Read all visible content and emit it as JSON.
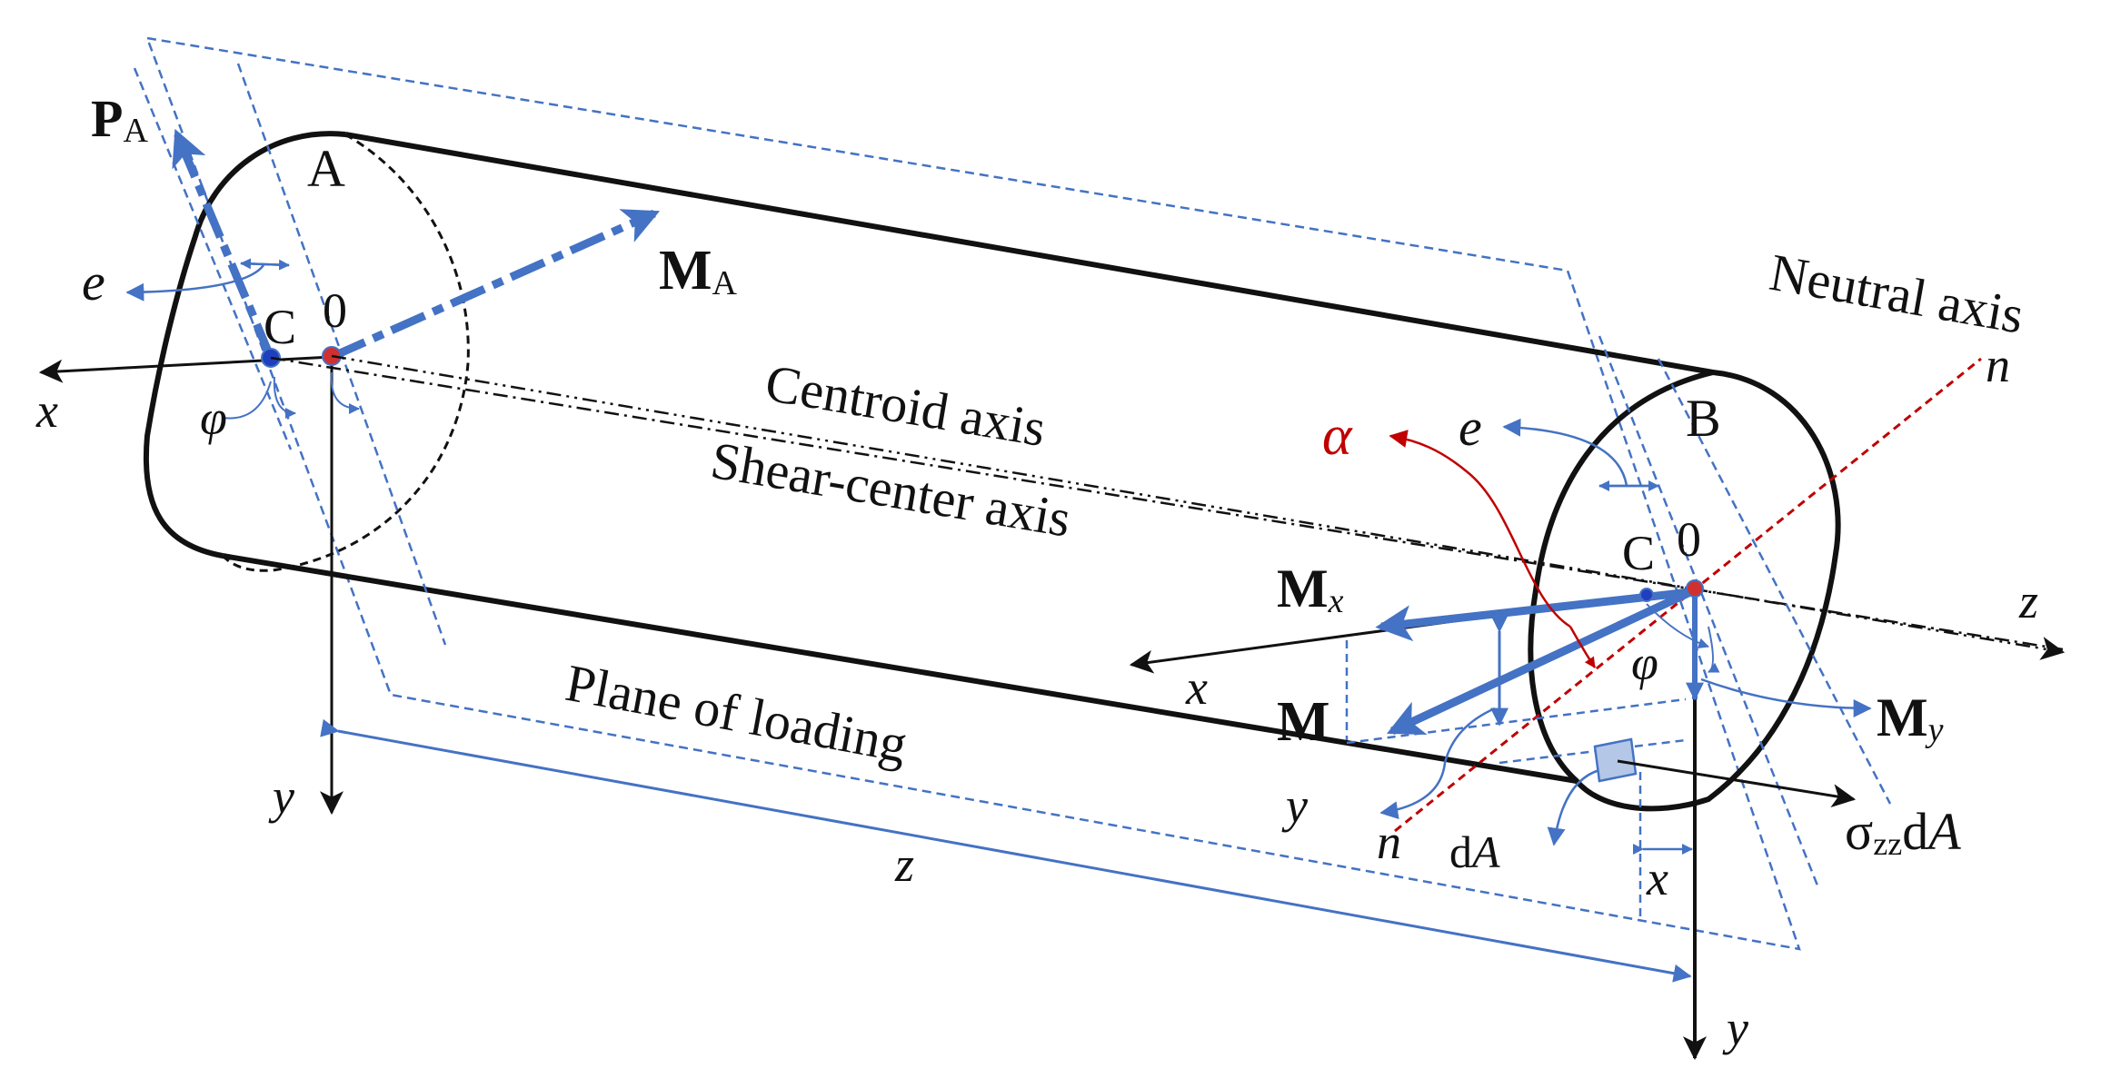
{
  "colors": {
    "outline": "#111111",
    "blue": "#4472c4",
    "red": "#c00000",
    "dA_fill": "#b4c7e7"
  },
  "labels": {
    "P": "P",
    "P_sub": "A",
    "A": "A",
    "e_left": "e",
    "C_left": "C",
    "zero_left": "0",
    "M_A": "M",
    "M_A_sub": "A",
    "x_left": "x",
    "phi_left": "φ",
    "y_left": "y",
    "centroid_axis": "Centroid axis",
    "shear_center_axis": "Shear-center axis",
    "plane_of_loading": "Plane of loading",
    "z_bottom": "z",
    "neutral_axis": "Neutral axis",
    "n_top": "n",
    "alpha": "α",
    "e_right": "e",
    "B": "B",
    "C_right": "C",
    "zero_right": "0",
    "z_right": "z",
    "M_x": "M",
    "M_x_sub": "x",
    "x_right": "x",
    "phi_right": "φ",
    "M": "M",
    "M_y": "M",
    "M_y_sub": "y",
    "y_mid": "y",
    "n_bottom": "n",
    "dA_d": "d",
    "dA_A": "A",
    "sigma": "σ",
    "sigma_sub": "zz",
    "sigma_d": "d",
    "sigma_A": "A",
    "x_small": "x",
    "y_right": "y"
  }
}
